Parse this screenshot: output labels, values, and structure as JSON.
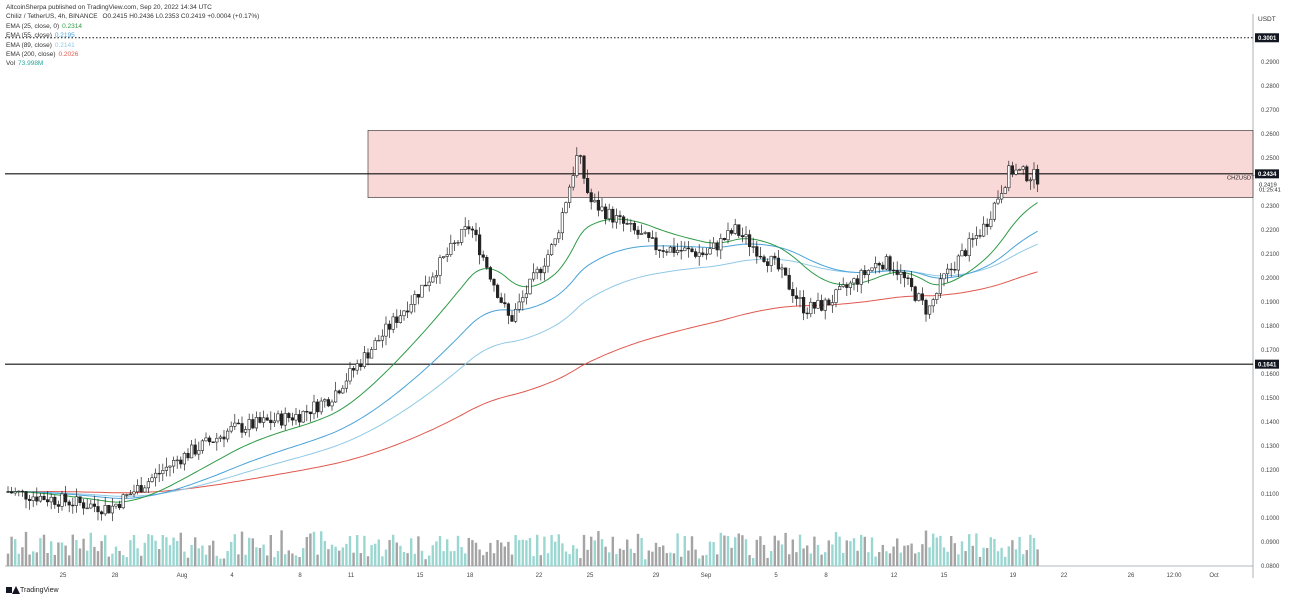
{
  "publisher_line": "AltcoinSherpa published on TradingView.com, Sep 20, 2022 14:34 UTC",
  "header": {
    "symbol_line": "Chiliz / TetherUS, 4h, BINANCE",
    "ohlc": "O0.2415  H0.2436  L0.2353  C0.2419  +0.0004 (+0.17%)",
    "indicators": [
      {
        "label": "EMA (25, close, 0)",
        "value": "0.2314",
        "color": "#2e9a46"
      },
      {
        "label": "EMA (55, close)",
        "value": "0.2195",
        "color": "#4aa3d8"
      },
      {
        "label": "EMA (89, close)",
        "value": "0.2141",
        "color": "#8fc9e6"
      },
      {
        "label": "EMA (200, close)",
        "value": "0.2026",
        "color": "#e0584f"
      },
      {
        "label": "Vol",
        "value": "73.998M",
        "color": "#26a69a"
      }
    ]
  },
  "currency": "USDT",
  "footer_logo": "TradingView",
  "symbol_tag": "CHZUSDT",
  "countdown": "01:25:41",
  "chart_data": {
    "type": "candlestick",
    "ylim": [
      0.08,
      0.31
    ],
    "y_ticks": [
      "0.2900",
      "0.2800",
      "0.2700",
      "0.2600",
      "0.2500",
      "0.2300",
      "0.2200",
      "0.2100",
      "0.2000",
      "0.1900",
      "0.1800",
      "0.1700",
      "0.1600",
      "0.1500",
      "0.1400",
      "0.1300",
      "0.1200",
      "0.1100",
      "0.1000",
      "0.0900",
      "0.0800"
    ],
    "x_ticks": [
      "25",
      "28",
      "Aug",
      "4",
      "8",
      "11",
      "15",
      "18",
      "22",
      "25",
      "29",
      "Sep",
      "5",
      "8",
      "12",
      "15",
      "19",
      "22",
      "26",
      "12:00",
      "Oct"
    ],
    "price_labels": [
      {
        "value": 0.3001,
        "text": "0.3001",
        "style": "dotted"
      },
      {
        "value": 0.2434,
        "text": "0.2434",
        "style": "solid"
      },
      {
        "value": 0.2419,
        "text": "0.2419",
        "style": "current"
      },
      {
        "value": 0.1641,
        "text": "0.1641",
        "style": "solid"
      }
    ],
    "resistance_zone": {
      "from": 0.2335,
      "to": 0.2615,
      "start_label": "11"
    },
    "key_points": [
      {
        "label": "25",
        "close": 0.111
      },
      {
        "label": "28",
        "close": 0.104
      },
      {
        "label": "Aug",
        "close": 0.125
      },
      {
        "label": "4",
        "close": 0.137
      },
      {
        "label": "8",
        "close": 0.143
      },
      {
        "label": "11",
        "close": 0.15
      },
      {
        "label": "15",
        "close": 0.195
      },
      {
        "label": "18",
        "close": 0.222
      },
      {
        "label": "20",
        "close": 0.182
      },
      {
        "label": "22",
        "close": 0.215
      },
      {
        "label": "24",
        "close": 0.252
      },
      {
        "label": "25",
        "close": 0.232
      },
      {
        "label": "29",
        "close": 0.213
      },
      {
        "label": "Sep",
        "close": 0.21
      },
      {
        "label": "2",
        "close": 0.22
      },
      {
        "label": "5",
        "close": 0.205
      },
      {
        "label": "7",
        "close": 0.187
      },
      {
        "label": "8",
        "close": 0.189
      },
      {
        "label": "10",
        "close": 0.207
      },
      {
        "label": "12",
        "close": 0.205
      },
      {
        "label": "14",
        "close": 0.186
      },
      {
        "label": "15",
        "close": 0.2
      },
      {
        "label": "17",
        "close": 0.222
      },
      {
        "label": "19",
        "close": 0.245
      },
      {
        "label": "20",
        "close": 0.2419
      }
    ],
    "ema_last": {
      "ema25": 0.2314,
      "ema55": 0.2195,
      "ema89": 0.2141,
      "ema200": 0.2026
    },
    "volume_last": "73.998M"
  }
}
